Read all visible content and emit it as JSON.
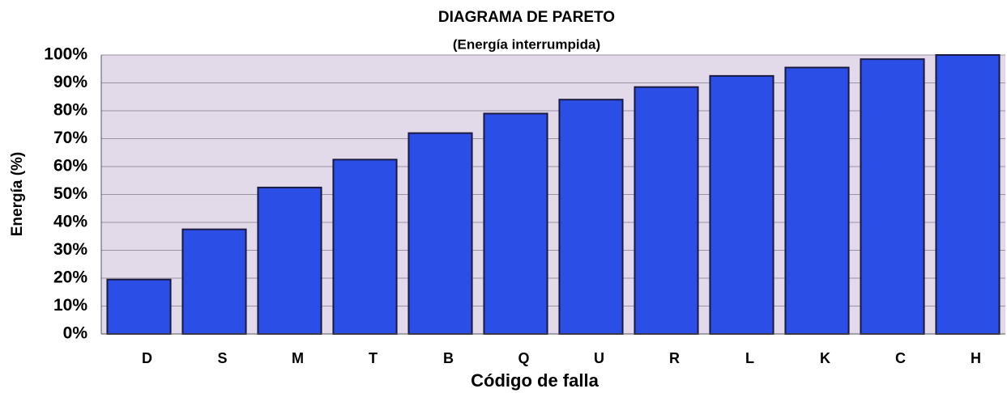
{
  "chart_data": {
    "type": "bar",
    "title": "DIAGRAMA DE PARETO",
    "subtitle": "(Energía interrumpida)",
    "x_label": "Código de falla",
    "y_label": "Energía (%)",
    "categories": [
      "D",
      "S",
      "M",
      "T",
      "B",
      "Q",
      "U",
      "R",
      "L",
      "K",
      "C",
      "H"
    ],
    "values": [
      19.5,
      37.5,
      52.5,
      62.5,
      72,
      79,
      84,
      88.5,
      92.5,
      95.5,
      98.5,
      100
    ],
    "color": "#2b4ee6",
    "ylim": [
      0,
      100
    ],
    "yticks": [
      {
        "value": 0,
        "label": "0%"
      },
      {
        "value": 10,
        "label": "10%"
      },
      {
        "value": 20,
        "label": "20%"
      },
      {
        "value": 30,
        "label": "30%"
      },
      {
        "value": 40,
        "label": "40%"
      },
      {
        "value": 50,
        "label": "50%"
      },
      {
        "value": 60,
        "label": "60%"
      },
      {
        "value": 70,
        "label": "70%"
      },
      {
        "value": 80,
        "label": "80%"
      },
      {
        "value": 90,
        "label": "90%"
      },
      {
        "value": 100,
        "label": "100%"
      }
    ],
    "grid": true
  }
}
